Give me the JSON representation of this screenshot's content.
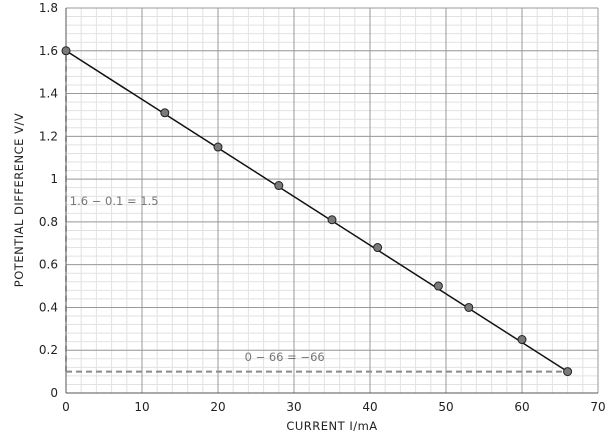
{
  "chart_data": {
    "type": "scatter",
    "xlabel": "CURRENT  I/mA",
    "ylabel": "POTENTIAL  DIFFERENCE  V/V",
    "xlim": [
      0,
      70
    ],
    "ylim": [
      0,
      1.8
    ],
    "x_ticks": [
      "0",
      "10",
      "20",
      "30",
      "40",
      "50",
      "60",
      "70"
    ],
    "y_ticks": [
      "0",
      "0.2",
      "0.4",
      "0.6",
      "0.8",
      "1",
      "1.2",
      "1.4",
      "1.6",
      "1.8"
    ],
    "grid": true,
    "points": [
      {
        "x": 0,
        "y": 1.6
      },
      {
        "x": 13,
        "y": 1.31
      },
      {
        "x": 20,
        "y": 1.15
      },
      {
        "x": 28,
        "y": 0.97
      },
      {
        "x": 35,
        "y": 0.81
      },
      {
        "x": 41,
        "y": 0.68
      },
      {
        "x": 49,
        "y": 0.5
      },
      {
        "x": 53,
        "y": 0.4
      },
      {
        "x": 60,
        "y": 0.25
      },
      {
        "x": 66,
        "y": 0.1
      }
    ],
    "best_fit_line": {
      "from": {
        "x": 0,
        "y": 1.6
      },
      "to": {
        "x": 66,
        "y": 0.1
      }
    },
    "dashed_line": {
      "y": 0.1,
      "x_from": 0,
      "x_to": 66
    },
    "dashed_vertical": {
      "x": 0,
      "y_from": 0.1,
      "y_to": 1.6
    },
    "annotations": [
      {
        "text": "1.6 − 0.1 = 1.5",
        "x": 0.5,
        "y": 0.88
      },
      {
        "text": "0 − 66 = −66",
        "x": 23.5,
        "y": 0.15
      }
    ],
    "colors": {
      "line": "#111111",
      "point": "#7a7a7a",
      "dashed": "#8a8a8a",
      "major_grid": "#9a9a9a",
      "minor_grid": "#e2e2e2"
    }
  }
}
